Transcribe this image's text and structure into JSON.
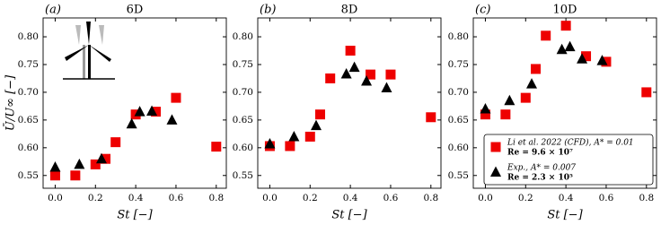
{
  "chart_data": [
    {
      "type": "scatter",
      "panel_label": "(a)",
      "title": "6D",
      "ylabel": "Ū/U∞ [−]",
      "xlabel": "St [−]",
      "xlim": [
        -0.06,
        0.85
      ],
      "ylim": [
        0.527,
        0.834
      ],
      "xticks": [
        {
          "value": 0,
          "label": "0.0"
        },
        0.2,
        0.4,
        0.6,
        0.8
      ],
      "yticks": [
        0.55,
        {
          "value": 0.6,
          "label": "0.60"
        },
        0.65,
        {
          "value": 0.7,
          "label": "0.70"
        },
        0.75,
        {
          "value": 0.8,
          "label": "0.80"
        }
      ],
      "series": [
        {
          "color": "#ee0000",
          "marker": "square",
          "x": [
            0,
            0.1,
            0.2,
            0.25,
            0.3,
            0.4,
            0.5,
            0.6,
            0.8
          ],
          "values": [
            0.55,
            0.55,
            0.57,
            0.58,
            0.61,
            0.66,
            0.665,
            0.69,
            0.602
          ]
        },
        {
          "color": "#000000",
          "marker": "triangle",
          "x": [
            0,
            0.12,
            0.23,
            0.38,
            0.42,
            0.48,
            0.58
          ],
          "values": [
            0.565,
            0.57,
            0.58,
            0.643,
            0.665,
            0.666,
            0.65
          ]
        }
      ]
    },
    {
      "type": "scatter",
      "panel_label": "(b)",
      "title": "8D",
      "xlabel": "St [−]",
      "xlim": [
        -0.06,
        0.85
      ],
      "ylim": [
        0.527,
        0.834
      ],
      "xticks": [
        {
          "value": 0,
          "label": "0.0"
        },
        0.2,
        0.4,
        0.6,
        0.8
      ],
      "yticks": [
        0.55,
        {
          "value": 0.6,
          "label": "0.60"
        },
        0.65,
        {
          "value": 0.7,
          "label": "0.70"
        },
        0.75,
        {
          "value": 0.8,
          "label": "0.80"
        }
      ],
      "series": [
        {
          "color": "#ee0000",
          "marker": "square",
          "x": [
            0,
            0.1,
            0.2,
            0.25,
            0.3,
            0.4,
            0.5,
            0.6,
            0.8
          ],
          "values": [
            0.603,
            0.603,
            0.62,
            0.66,
            0.725,
            0.775,
            0.732,
            0.732,
            0.655
          ]
        },
        {
          "color": "#000000",
          "marker": "triangle",
          "x": [
            0,
            0.12,
            0.23,
            0.38,
            0.42,
            0.48,
            0.58
          ],
          "values": [
            0.607,
            0.62,
            0.64,
            0.733,
            0.745,
            0.72,
            0.708
          ]
        }
      ]
    },
    {
      "type": "scatter",
      "panel_label": "(c)",
      "title": "10D",
      "xlabel": "St [−]",
      "xlim": [
        -0.06,
        0.85
      ],
      "ylim": [
        0.527,
        0.834
      ],
      "xticks": [
        {
          "value": 0,
          "label": "0.0"
        },
        0.2,
        0.4,
        0.6,
        0.8
      ],
      "yticks": [
        0.55,
        {
          "value": 0.6,
          "label": "0.60"
        },
        0.65,
        {
          "value": 0.7,
          "label": "0.70"
        },
        0.75,
        {
          "value": 0.8,
          "label": "0.80"
        }
      ],
      "legend": "lower right",
      "series": [
        {
          "name": [
            "Li et al. 2022 (CFD), A* = 0.01",
            "Re = 9.6 × 10⁷"
          ],
          "color": "#ee0000",
          "marker": "square",
          "x": [
            0,
            0.1,
            0.2,
            0.25,
            0.3,
            0.4,
            0.5,
            0.6,
            0.8
          ],
          "values": [
            0.66,
            0.66,
            0.69,
            0.742,
            0.802,
            0.82,
            0.765,
            0.755,
            0.7
          ]
        },
        {
          "name": [
            "Exp., A* = 0.007",
            "Re = 2.3 × 10⁵"
          ],
          "color": "#000000",
          "marker": "triangle",
          "x": [
            0,
            0.12,
            0.23,
            0.38,
            0.42,
            0.48,
            0.58
          ],
          "values": [
            0.67,
            0.685,
            0.715,
            0.777,
            0.782,
            0.76,
            0.757
          ]
        }
      ]
    }
  ]
}
